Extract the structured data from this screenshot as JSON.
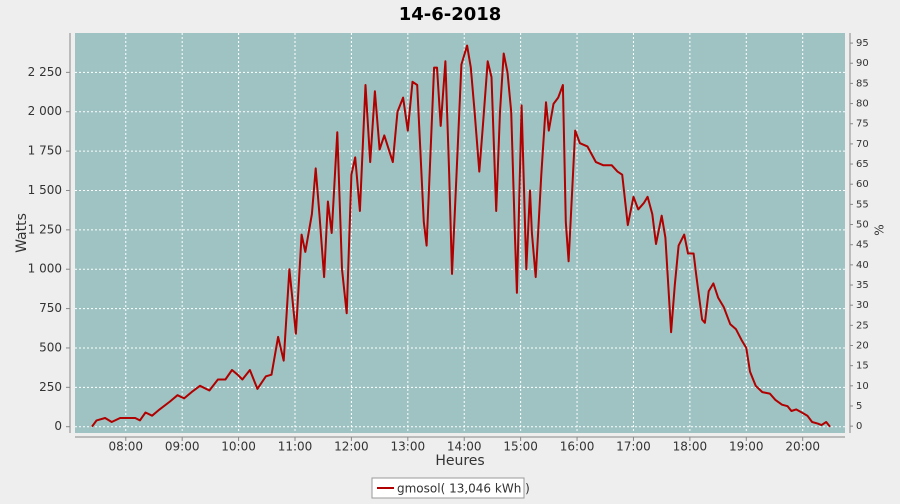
{
  "chart_data": {
    "type": "line",
    "title": "14-6-2018",
    "x_label": "Heures",
    "y_label": "Watts",
    "y2_label": "%",
    "xlim": [
      "07:06",
      "20:45"
    ],
    "xticks": [
      "08:00",
      "09:00",
      "10:00",
      "11:00",
      "12:00",
      "13:00",
      "14:00",
      "15:00",
      "16:00",
      "17:00",
      "18:00",
      "19:00",
      "20:00"
    ],
    "ylim": [
      -40,
      2500
    ],
    "yticks": [
      0,
      250,
      500,
      750,
      {
        "value": 1000,
        "label": "1 000"
      },
      {
        "value": 1250,
        "label": "1 250"
      },
      {
        "value": 1500,
        "label": "1 500"
      },
      {
        "value": 1750,
        "label": "1 750"
      },
      {
        "value": 2000,
        "label": "2 000"
      },
      {
        "value": 2250,
        "label": "2 250"
      }
    ],
    "y2lim": [
      -1.7,
      97.5
    ],
    "y2ticks": [
      0,
      5,
      10,
      15,
      20,
      25,
      30,
      35,
      40,
      45,
      50,
      55,
      60,
      65,
      70,
      75,
      80,
      85,
      90,
      95
    ],
    "grid": true,
    "legend": "bottom",
    "x": [
      "07:24",
      "07:29",
      "07:38",
      "07:45",
      "07:54",
      "08:10",
      "08:15",
      "08:21",
      "08:28",
      "08:36",
      "08:47",
      "08:55",
      "09:02",
      "09:10",
      "09:19",
      "09:29",
      "09:38",
      "09:46",
      "09:53",
      "09:59",
      "10:04",
      "10:12",
      "10:20",
      "10:29",
      "10:35",
      "10:42",
      "10:48",
      "10:54",
      "11:01",
      "11:07",
      "11:11",
      "11:18",
      "11:22",
      "11:26",
      "11:31",
      "11:35",
      "11:39",
      "11:45",
      "11:50",
      "11:55",
      "12:00",
      "12:04",
      "12:09",
      "12:15",
      "12:20",
      "12:25",
      "12:30",
      "12:35",
      "12:44",
      "12:49",
      "12:55",
      "13:00",
      "13:05",
      "13:10",
      "13:17",
      "13:20",
      "13:28",
      "13:31",
      "13:35",
      "13:40",
      "13:44",
      "13:47",
      "13:51",
      "13:57",
      "14:03",
      "14:07",
      "14:11",
      "14:16",
      "14:20",
      "14:25",
      "14:29",
      "14:34",
      "14:38",
      "14:42",
      "14:46",
      "14:50",
      "14:54",
      "14:56",
      "15:01",
      "15:06",
      "15:10",
      "15:12",
      "15:16",
      "15:22",
      "15:27",
      "15:30",
      "15:35",
      "15:40",
      "15:45",
      "15:48",
      "15:51",
      "15:58",
      "16:03",
      "16:11",
      "16:20",
      "16:28",
      "16:37",
      "16:43",
      "16:48",
      "16:54",
      "17:00",
      "17:05",
      "17:11",
      "17:15",
      "17:20",
      "17:24",
      "17:30",
      "17:34",
      "17:40",
      "17:44",
      "17:48",
      "17:54",
      "17:58",
      "18:04",
      "18:07",
      "18:13",
      "18:16",
      "18:20",
      "18:25",
      "18:30",
      "18:36",
      "18:43",
      "18:49",
      "18:55",
      "19:00",
      "19:04",
      "19:10",
      "19:17",
      "19:25",
      "19:31",
      "19:38",
      "19:44",
      "19:48",
      "19:53",
      "19:59",
      "20:05",
      "20:10",
      "20:16",
      "20:20",
      "20:25",
      "20:29"
    ],
    "series": [
      {
        "name": "gmosol( 13,046 kWh )",
        "color": "#b00000",
        "values": [
          0,
          40,
          55,
          30,
          55,
          55,
          40,
          90,
          70,
          110,
          160,
          200,
          180,
          220,
          260,
          230,
          300,
          300,
          360,
          330,
          300,
          360,
          240,
          320,
          330,
          570,
          420,
          1000,
          590,
          1220,
          1110,
          1350,
          1640,
          1350,
          950,
          1430,
          1230,
          1870,
          1000,
          720,
          1600,
          1710,
          1370,
          2170,
          1680,
          2130,
          1760,
          1850,
          1680,
          2000,
          2090,
          1880,
          2190,
          2170,
          1300,
          1150,
          2280,
          2280,
          1910,
          2320,
          1600,
          970,
          1500,
          2300,
          2420,
          2280,
          2000,
          1620,
          1920,
          2320,
          2220,
          1370,
          2000,
          2370,
          2250,
          2000,
          1200,
          850,
          2040,
          1000,
          1500,
          1230,
          950,
          1600,
          2060,
          1880,
          2050,
          2090,
          2170,
          1300,
          1050,
          1880,
          1800,
          1780,
          1680,
          1660,
          1660,
          1620,
          1600,
          1280,
          1460,
          1380,
          1420,
          1460,
          1350,
          1160,
          1340,
          1200,
          600,
          900,
          1150,
          1220,
          1100,
          1100,
          950,
          680,
          660,
          860,
          910,
          820,
          760,
          650,
          620,
          550,
          500,
          350,
          260,
          220,
          210,
          170,
          140,
          130,
          100,
          110,
          90,
          70,
          30,
          20,
          10,
          30,
          0
        ]
      }
    ]
  }
}
